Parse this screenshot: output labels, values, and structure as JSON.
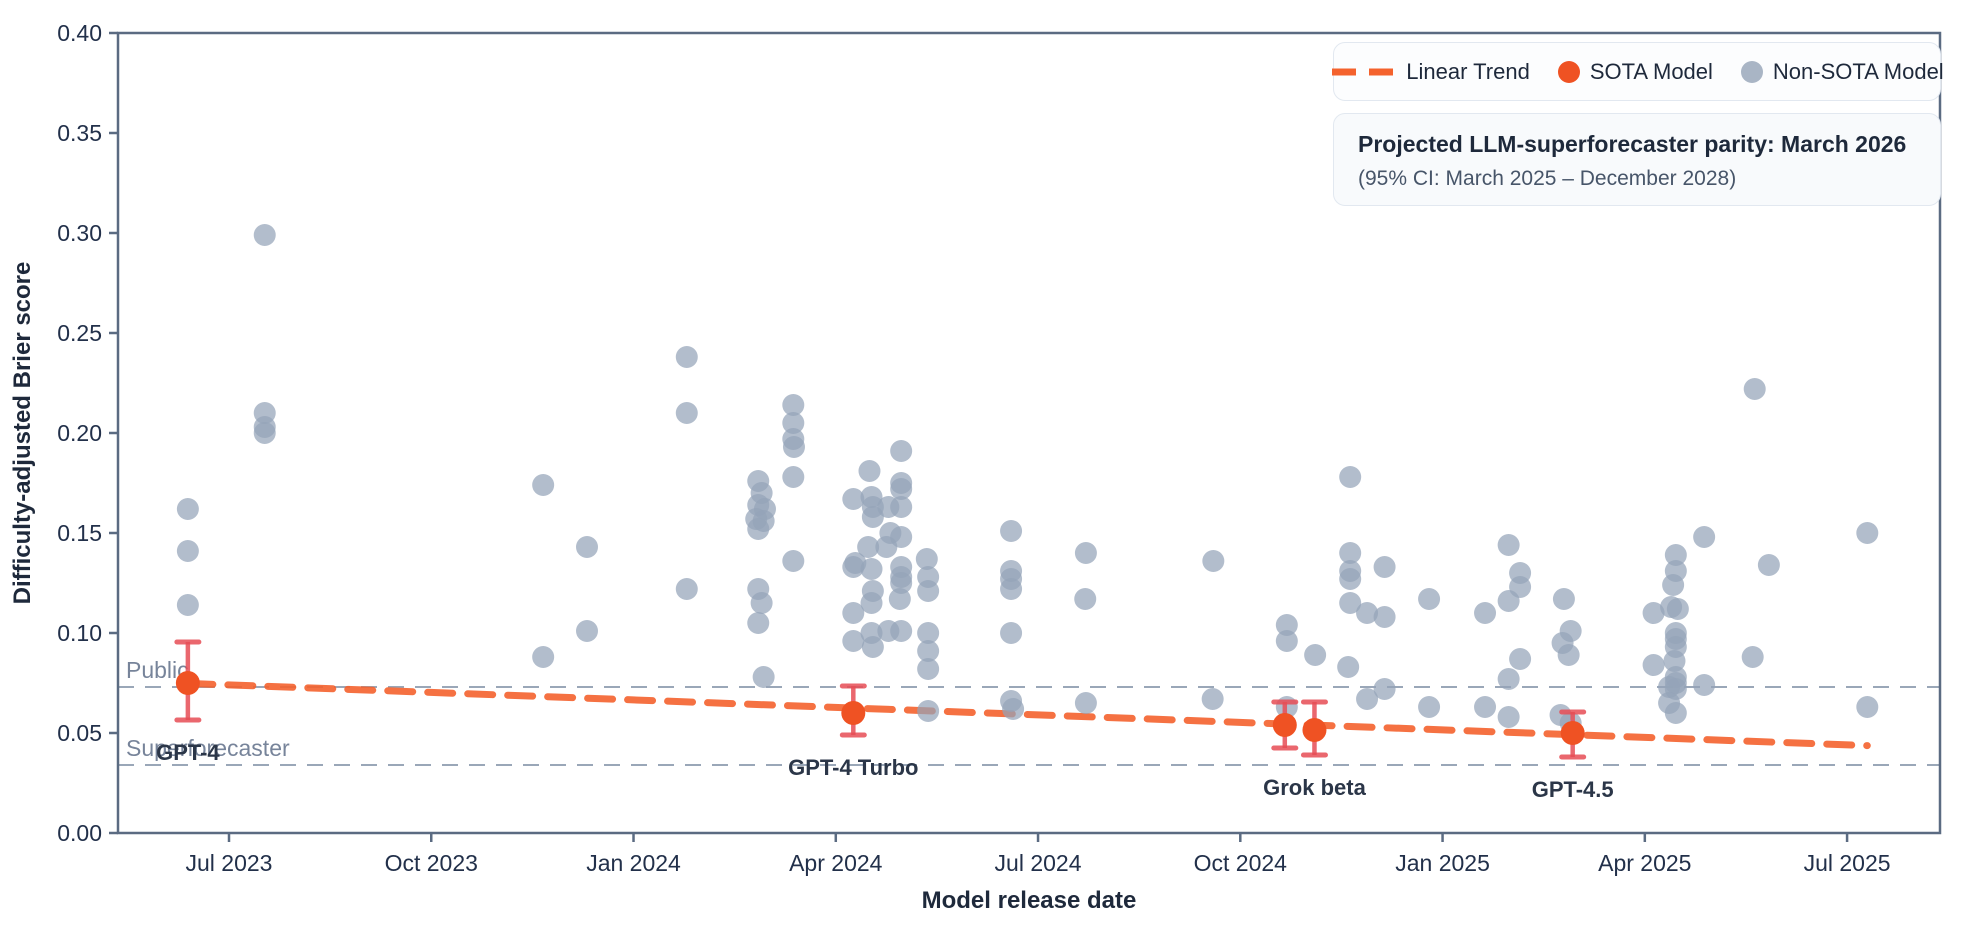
{
  "colors": {
    "accent_orange": "#f4622d",
    "sota_dot": "#ef5223",
    "error_bar": "#e64c55",
    "non_sota": "#94a3b8",
    "axis": "#5b6b82",
    "tick_text": "#22304a",
    "ref_line": "#9aa7b8",
    "ref_label": "#77849a",
    "sota_label": "#2b3648"
  },
  "legend": {
    "linear_trend": "Linear Trend",
    "sota": "SOTA Model",
    "non_sota": "Non-SOTA Model"
  },
  "annotation": {
    "title": "Projected LLM-superforecaster parity: March 2026",
    "subtitle": "(95% CI: March 2025 – December 2028)"
  },
  "chart_data": {
    "type": "scatter",
    "xlabel": "Model release date",
    "ylabel": "Difficulty-adjusted Brier score",
    "x_unit": "m = months after Jul 2023",
    "x_range_months": [
      -1.65,
      25.35
    ],
    "ylim": [
      0.0,
      0.4
    ],
    "grid": false,
    "legend_position": "top-right",
    "x_tick_months": [
      0,
      3,
      6,
      9,
      12,
      15,
      18,
      21,
      24
    ],
    "x_tick_labels": [
      "Jul 2023",
      "Oct 2023",
      "Jan 2024",
      "Apr 2024",
      "Jul 2024",
      "Oct 2024",
      "Jan 2025",
      "Apr 2025",
      "Jul 2025"
    ],
    "y_tick_values": [
      0.0,
      0.05,
      0.1,
      0.15,
      0.2,
      0.25,
      0.3,
      0.35,
      0.4
    ],
    "y_tick_labels": [
      "0.00",
      "0.05",
      "0.10",
      "0.15",
      "0.20",
      "0.25",
      "0.30",
      "0.35",
      "0.40"
    ],
    "reference_lines": [
      {
        "name": "public",
        "label": "Public",
        "value": 0.073
      },
      {
        "name": "superforecaster",
        "label": "Superforecaster",
        "value": 0.034
      }
    ],
    "trend": {
      "label": "Linear Trend",
      "m_start": -0.61,
      "v_start": 0.0748,
      "m_end": 24.3,
      "v_end": 0.0437
    },
    "sota_models": [
      {
        "label": "GPT-4",
        "m": -0.61,
        "value": 0.075,
        "ci": [
          0.0565,
          0.0955
        ]
      },
      {
        "label": "GPT-4 Turbo",
        "m": 9.26,
        "value": 0.06,
        "ci": [
          0.049,
          0.0735
        ]
      },
      {
        "label": "",
        "m": 15.66,
        "value": 0.054,
        "ci": [
          0.0425,
          0.0655
        ]
      },
      {
        "label": "Grok beta",
        "m": 16.1,
        "value": 0.0515,
        "ci": [
          0.039,
          0.0655
        ]
      },
      {
        "label": "GPT-4.5",
        "m": 19.93,
        "value": 0.05,
        "ci": [
          0.038,
          0.0605
        ]
      }
    ],
    "non_sota_points": [
      [
        -0.61,
        0.162
      ],
      [
        -0.61,
        0.141
      ],
      [
        -0.61,
        0.114
      ],
      [
        0.53,
        0.299
      ],
      [
        0.53,
        0.21
      ],
      [
        0.53,
        0.203
      ],
      [
        0.53,
        0.2
      ],
      [
        4.66,
        0.174
      ],
      [
        4.66,
        0.088
      ],
      [
        5.31,
        0.143
      ],
      [
        5.31,
        0.101
      ],
      [
        6.79,
        0.238
      ],
      [
        6.79,
        0.21
      ],
      [
        6.79,
        0.122
      ],
      [
        7.85,
        0.176
      ],
      [
        7.9,
        0.17
      ],
      [
        7.85,
        0.164
      ],
      [
        7.95,
        0.162
      ],
      [
        7.82,
        0.157
      ],
      [
        7.93,
        0.156
      ],
      [
        7.85,
        0.152
      ],
      [
        7.85,
        0.122
      ],
      [
        7.9,
        0.115
      ],
      [
        7.85,
        0.105
      ],
      [
        7.93,
        0.078
      ],
      [
        8.37,
        0.214
      ],
      [
        8.37,
        0.205
      ],
      [
        8.37,
        0.197
      ],
      [
        8.38,
        0.193
      ],
      [
        8.37,
        0.178
      ],
      [
        8.37,
        0.136
      ],
      [
        9.26,
        0.167
      ],
      [
        9.29,
        0.135
      ],
      [
        9.26,
        0.133
      ],
      [
        9.26,
        0.11
      ],
      [
        9.26,
        0.096
      ],
      [
        9.5,
        0.181
      ],
      [
        9.53,
        0.168
      ],
      [
        9.55,
        0.163
      ],
      [
        9.55,
        0.158
      ],
      [
        9.48,
        0.143
      ],
      [
        9.53,
        0.132
      ],
      [
        9.55,
        0.121
      ],
      [
        9.53,
        0.115
      ],
      [
        9.53,
        0.1
      ],
      [
        9.55,
        0.093
      ],
      [
        9.78,
        0.163
      ],
      [
        9.81,
        0.15
      ],
      [
        9.75,
        0.143
      ],
      [
        9.78,
        0.101
      ],
      [
        9.97,
        0.191
      ],
      [
        9.97,
        0.175
      ],
      [
        9.97,
        0.172
      ],
      [
        9.97,
        0.163
      ],
      [
        9.97,
        0.148
      ],
      [
        9.97,
        0.133
      ],
      [
        9.97,
        0.128
      ],
      [
        9.97,
        0.125
      ],
      [
        9.95,
        0.117
      ],
      [
        9.97,
        0.101
      ],
      [
        10.35,
        0.137
      ],
      [
        10.37,
        0.128
      ],
      [
        10.37,
        0.121
      ],
      [
        10.37,
        0.1
      ],
      [
        10.37,
        0.091
      ],
      [
        10.37,
        0.082
      ],
      [
        10.37,
        0.061
      ],
      [
        11.6,
        0.151
      ],
      [
        11.6,
        0.131
      ],
      [
        11.6,
        0.127
      ],
      [
        11.6,
        0.122
      ],
      [
        11.6,
        0.1
      ],
      [
        11.6,
        0.066
      ],
      [
        11.63,
        0.062
      ],
      [
        12.71,
        0.14
      ],
      [
        12.7,
        0.117
      ],
      [
        12.71,
        0.065
      ],
      [
        14.6,
        0.136
      ],
      [
        14.59,
        0.067
      ],
      [
        15.69,
        0.104
      ],
      [
        15.69,
        0.096
      ],
      [
        15.69,
        0.063
      ],
      [
        16.11,
        0.089
      ],
      [
        16.63,
        0.178
      ],
      [
        16.63,
        0.14
      ],
      [
        16.63,
        0.131
      ],
      [
        16.63,
        0.127
      ],
      [
        16.63,
        0.115
      ],
      [
        16.6,
        0.083
      ],
      [
        16.88,
        0.11
      ],
      [
        16.88,
        0.067
      ],
      [
        17.14,
        0.133
      ],
      [
        17.14,
        0.108
      ],
      [
        17.14,
        0.072
      ],
      [
        17.8,
        0.117
      ],
      [
        17.8,
        0.063
      ],
      [
        18.63,
        0.11
      ],
      [
        18.63,
        0.063
      ],
      [
        18.98,
        0.144
      ],
      [
        18.98,
        0.116
      ],
      [
        18.98,
        0.077
      ],
      [
        18.98,
        0.058
      ],
      [
        19.15,
        0.13
      ],
      [
        19.15,
        0.123
      ],
      [
        19.15,
        0.087
      ],
      [
        19.8,
        0.117
      ],
      [
        19.9,
        0.101
      ],
      [
        19.78,
        0.095
      ],
      [
        19.87,
        0.089
      ],
      [
        19.75,
        0.059
      ],
      [
        19.9,
        0.055
      ],
      [
        21.13,
        0.11
      ],
      [
        21.13,
        0.084
      ],
      [
        21.46,
        0.139
      ],
      [
        21.46,
        0.131
      ],
      [
        21.42,
        0.124
      ],
      [
        21.39,
        0.113
      ],
      [
        21.49,
        0.112
      ],
      [
        21.46,
        0.1
      ],
      [
        21.46,
        0.097
      ],
      [
        21.46,
        0.093
      ],
      [
        21.44,
        0.086
      ],
      [
        21.46,
        0.078
      ],
      [
        21.46,
        0.075
      ],
      [
        21.46,
        0.072
      ],
      [
        21.36,
        0.073
      ],
      [
        21.36,
        0.065
      ],
      [
        21.46,
        0.06
      ],
      [
        21.88,
        0.148
      ],
      [
        21.88,
        0.074
      ],
      [
        22.63,
        0.222
      ],
      [
        22.6,
        0.088
      ],
      [
        22.84,
        0.134
      ],
      [
        24.3,
        0.15
      ],
      [
        24.3,
        0.063
      ]
    ]
  }
}
